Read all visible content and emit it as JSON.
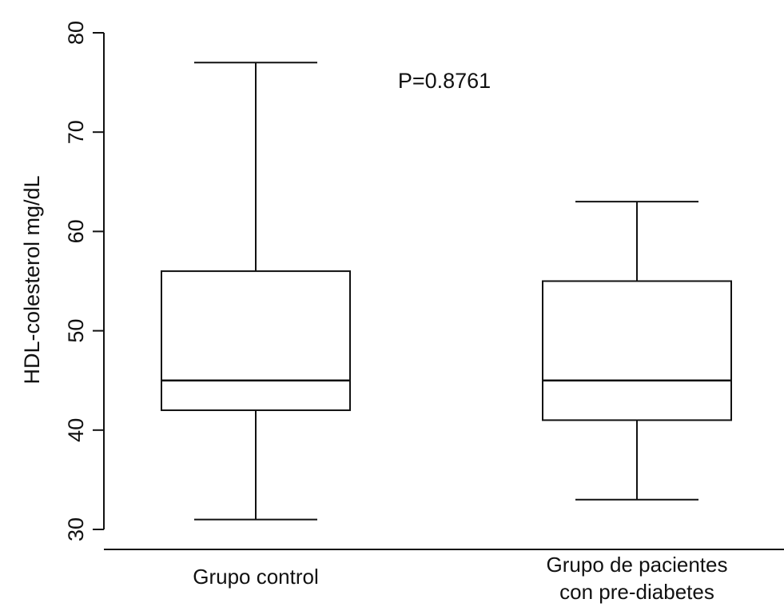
{
  "chart_data": {
    "type": "boxplot",
    "title": "",
    "annotation": "P=0.8761",
    "xlabel": "",
    "ylabel": "HDL-colesterol mg/dL",
    "ylim": [
      29,
      82
    ],
    "yticks": [
      30,
      40,
      50,
      60,
      70,
      80
    ],
    "grid": false,
    "legend": "none",
    "colors": {
      "line": "#111111",
      "background": "#ffffff"
    },
    "groups": [
      {
        "label": [
          "Grupo control"
        ],
        "whisker_low": 31,
        "q1": 42,
        "median": 45,
        "q3": 56,
        "whisker_high": 77
      },
      {
        "label": [
          "Grupo de pacientes",
          "con pre-diabetes"
        ],
        "whisker_low": 33,
        "q1": 41,
        "median": 45,
        "q3": 55,
        "whisker_high": 63
      }
    ]
  }
}
